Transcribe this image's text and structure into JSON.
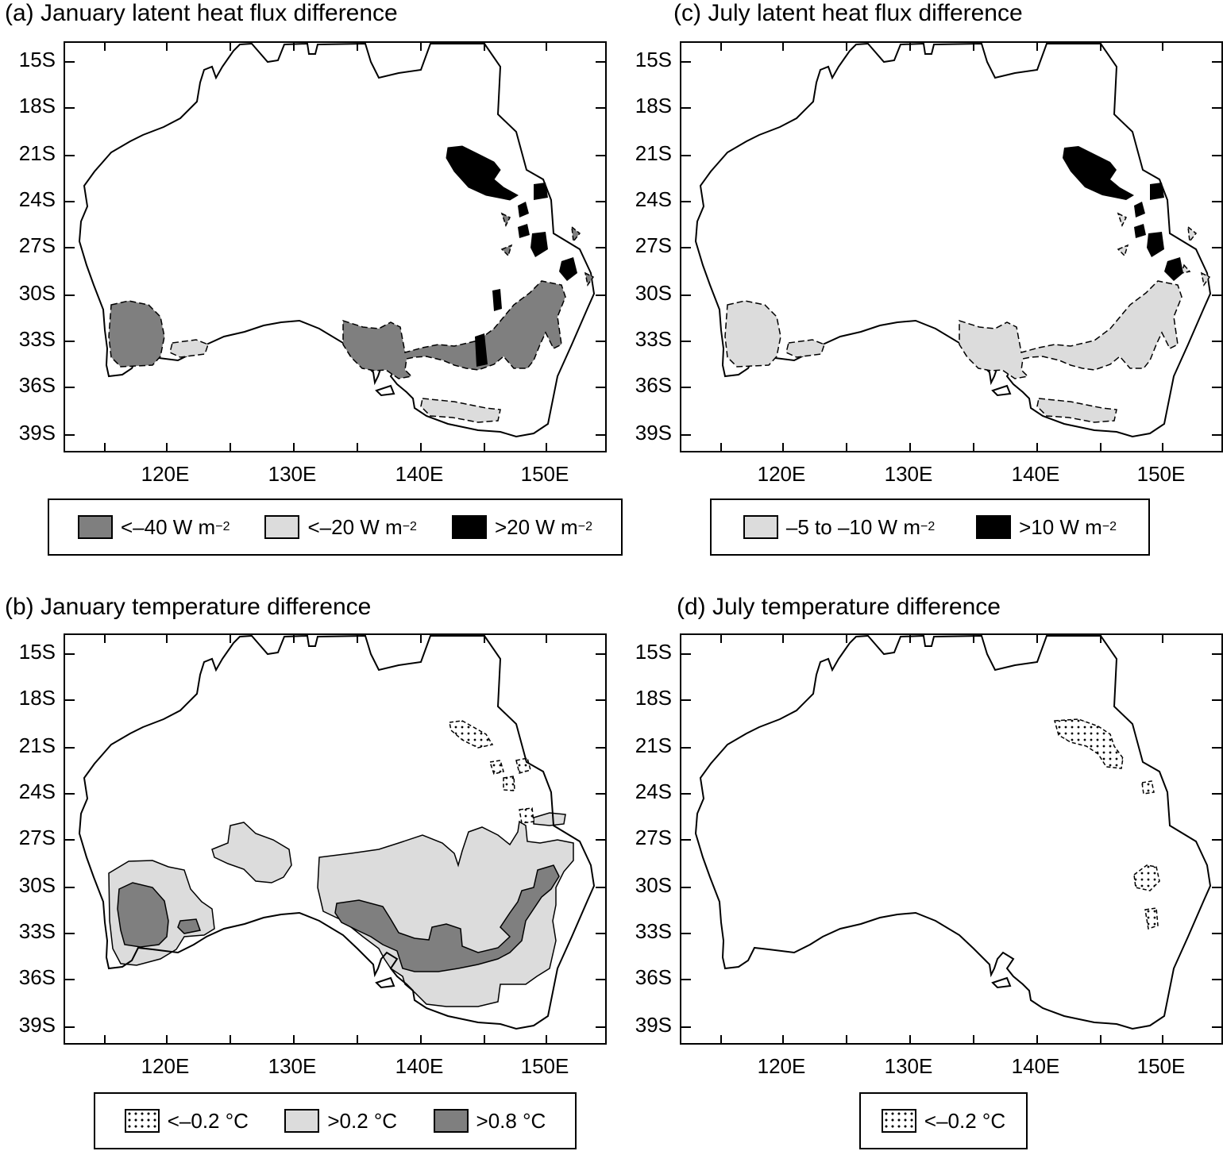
{
  "panels": {
    "a": {
      "title": "(a) January latent heat flux difference",
      "legend": [
        {
          "style": "dark",
          "text": "<–40 W m",
          "sup": "−2"
        },
        {
          "style": "light",
          "text": "<–20 W m",
          "sup": "−2"
        },
        {
          "style": "black",
          "text": ">20 W m",
          "sup": "−2"
        }
      ]
    },
    "b": {
      "title": "(b) January temperature difference",
      "legend": [
        {
          "style": "dots",
          "text": "<–0.2 °C"
        },
        {
          "style": "light",
          "text": ">0.2 °C"
        },
        {
          "style": "dark",
          "text": ">0.8 °C"
        }
      ]
    },
    "c": {
      "title": "(c) July latent heat flux difference",
      "legend": [
        {
          "style": "light",
          "text": "–5 to –10 W m",
          "sup": "−2"
        },
        {
          "style": "black",
          "text": ">10 W m",
          "sup": "−2"
        }
      ]
    },
    "d": {
      "title": "(d) July temperature difference",
      "legend": [
        {
          "style": "dots",
          "text": "<–0.2 °C"
        }
      ]
    }
  },
  "axes": {
    "lat_labels": [
      "15S",
      "18S",
      "21S",
      "24S",
      "27S",
      "30S",
      "33S",
      "36S",
      "39S"
    ],
    "lon_labels": [
      "120E",
      "130E",
      "140E",
      "150E"
    ]
  },
  "colors": {
    "dark_gray": "#7f7f7f",
    "light_gray": "#dcdcdc",
    "black": "#000000"
  }
}
